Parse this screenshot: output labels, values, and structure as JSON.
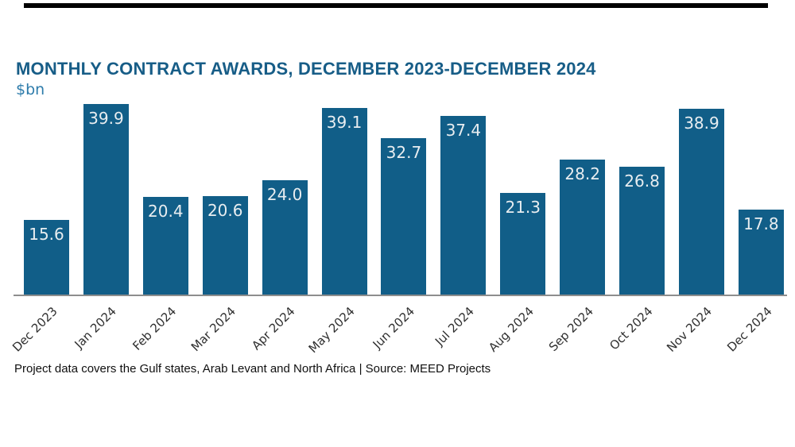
{
  "header": {
    "title": "MONTHLY CONTRACT AWARDS, DECEMBER 2023-DECEMBER 2024",
    "unit": "$bn"
  },
  "chart_data": {
    "type": "bar",
    "title": "MONTHLY CONTRACT AWARDS, DECEMBER 2023-DECEMBER 2024",
    "ylabel": "$bn",
    "xlabel": "",
    "categories": [
      "Dec 2023",
      "Jan 2024",
      "Feb 2024",
      "Mar 2024",
      "Apr 2024",
      "May 2024",
      "Jun 2024",
      "Jul 2024",
      "Aug 2024",
      "Sep 2024",
      "Oct 2024",
      "Nov 2024",
      "Dec 2024"
    ],
    "values": [
      15.6,
      39.9,
      20.4,
      20.6,
      24.0,
      39.1,
      32.7,
      37.4,
      21.3,
      28.2,
      26.8,
      38.9,
      17.8
    ],
    "ylim": [
      0,
      40
    ],
    "grid": false,
    "legend_position": "none",
    "bar_color": "#115e88",
    "value_label_color": "#e8edf0",
    "axis_line_color": "#8d8d8d",
    "tick_label_color": "#2f2f2f",
    "title_color": "#175d87",
    "unit_color": "#2e7cab"
  },
  "footer": {
    "text": "Project data covers the Gulf states, Arab Levant and North Africa | Source: MEED Projects"
  }
}
